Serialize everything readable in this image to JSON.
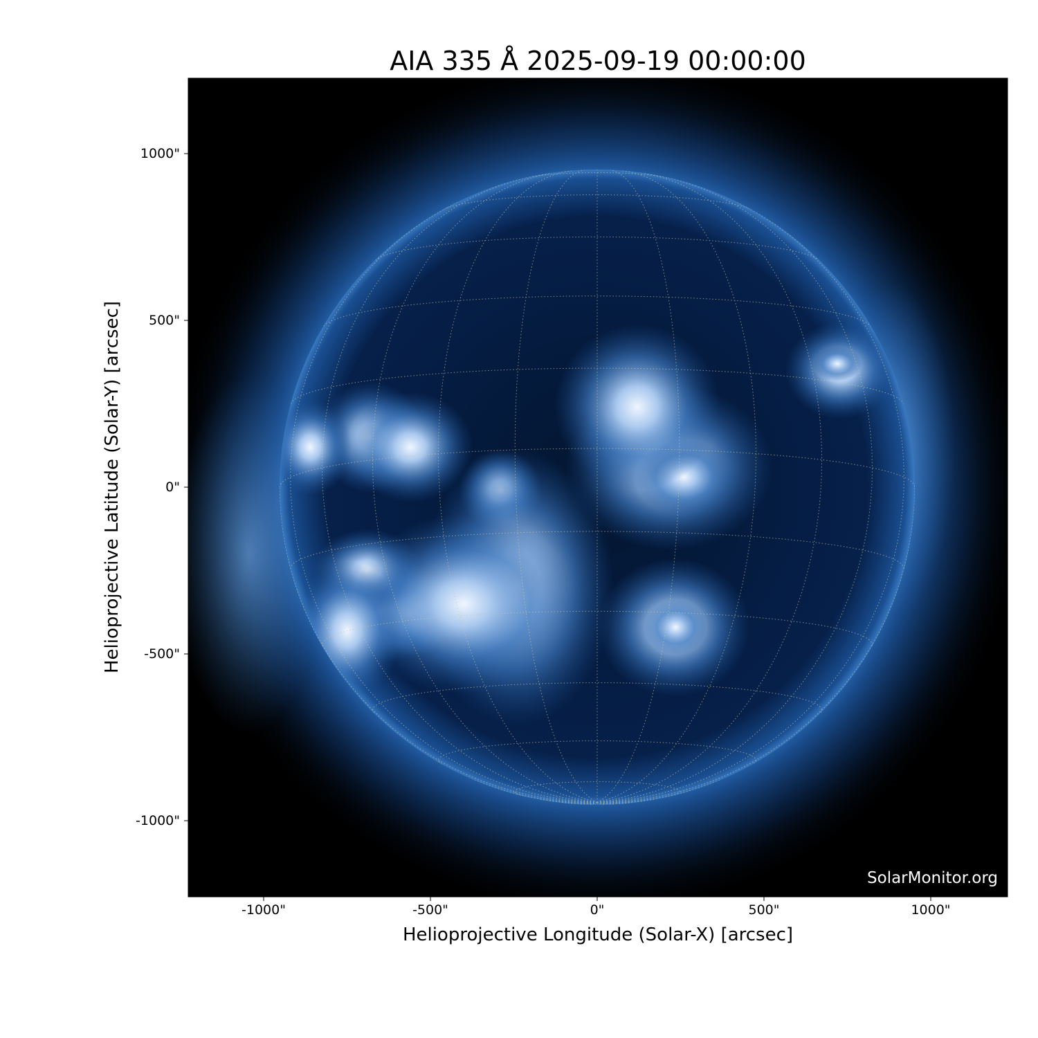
{
  "title": "AIA 335 Å 2025-09-19 00:00:00",
  "instrument": "AIA",
  "wavelength": "335 Å",
  "date": "2025-09-19 00:00:00",
  "xlabel": "Helioprojective Longitude (Solar-X) [arcsec]",
  "ylabel": "Helioprojective Latitude (Solar-Y) [arcsec]",
  "xticks": [
    "-1000\"",
    "-500\"",
    "0\"",
    "500\"",
    "1000\""
  ],
  "yticks": [
    "1000\"",
    "500\"",
    "0\"",
    "-500\"",
    "-1000\""
  ],
  "watermark": "SolarMonitor.org",
  "colormap": "sdoaia335",
  "colors": {
    "background": "#000000",
    "disk_dark": "#02132a",
    "corona": "#1e5aa0",
    "bright": "#e6f0ff",
    "grid": "#c8c8a0"
  },
  "grid": "heliographic, dotted"
}
